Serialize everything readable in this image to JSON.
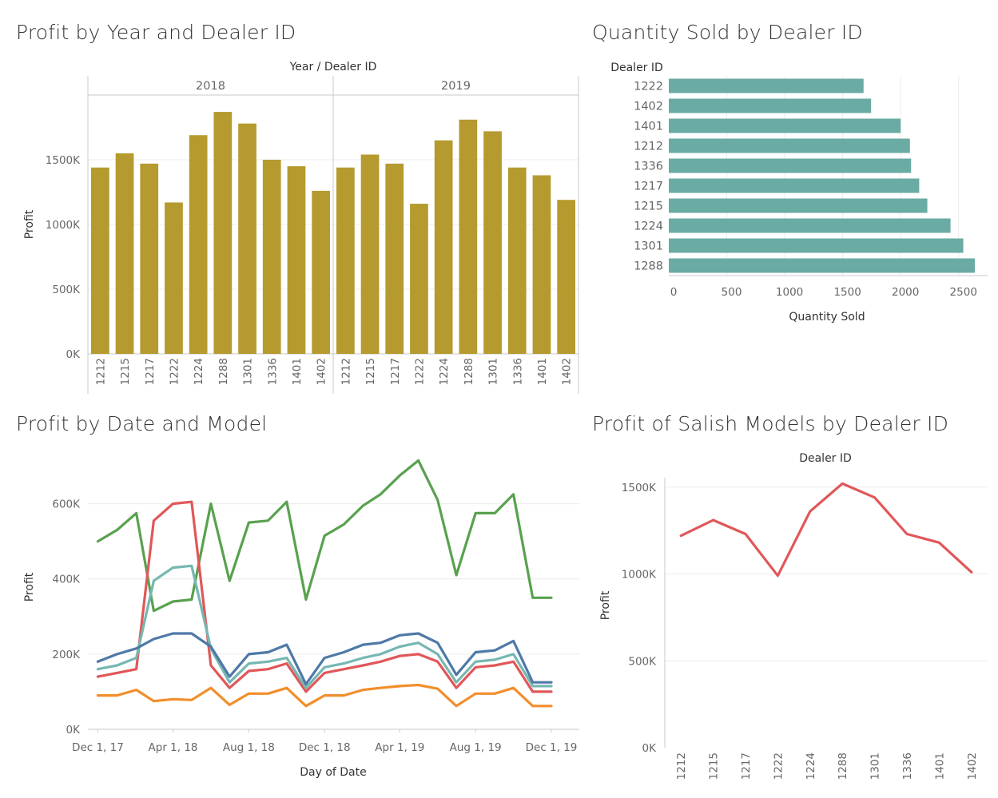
{
  "dashboard": {
    "titles": {
      "profit_year_dealer": "Profit by Year and Dealer ID",
      "quantity_by_dealer": "Quantity Sold by Dealer ID",
      "profit_date_model": "Profit by Date and Model",
      "salish_profit_dealer": "Profit of Salish Models by Dealer ID"
    }
  },
  "chart_data": [
    {
      "id": "profit_year_dealer",
      "type": "bar",
      "title": "Profit by Year and Dealer ID",
      "column_header": "Year / Dealer ID",
      "ylabel": "Profit",
      "ylim": [
        0,
        2000000
      ],
      "yticks": [
        0,
        500000,
        1000000,
        1500000
      ],
      "ytick_labels": [
        "0K",
        "500K",
        "1000K",
        "1500K"
      ],
      "color": "#b59a2f",
      "groups": [
        {
          "name": "2018",
          "categories": [
            "1212",
            "1215",
            "1217",
            "1222",
            "1224",
            "1288",
            "1301",
            "1336",
            "1401",
            "1402"
          ],
          "values": [
            1440000,
            1550000,
            1470000,
            1170000,
            1690000,
            1870000,
            1780000,
            1500000,
            1450000,
            1260000
          ]
        },
        {
          "name": "2019",
          "categories": [
            "1212",
            "1215",
            "1217",
            "1222",
            "1224",
            "1288",
            "1301",
            "1336",
            "1401",
            "1402"
          ],
          "values": [
            1440000,
            1540000,
            1470000,
            1160000,
            1650000,
            1810000,
            1720000,
            1440000,
            1380000,
            1190000
          ]
        }
      ]
    },
    {
      "id": "quantity_by_dealer",
      "type": "bar",
      "orientation": "horizontal",
      "title": "Quantity Sold by Dealer ID",
      "row_header": "Dealer ID",
      "xlabel": "Quantity Sold",
      "xlim": [
        0,
        2750
      ],
      "xticks": [
        0,
        500,
        1000,
        1500,
        2000,
        2500
      ],
      "color": "#6aaba3",
      "categories": [
        "1222",
        "1402",
        "1401",
        "1212",
        "1336",
        "1217",
        "1215",
        "1224",
        "1301",
        "1288"
      ],
      "values": [
        1680,
        1745,
        2000,
        2080,
        2090,
        2160,
        2230,
        2430,
        2540,
        2640
      ]
    },
    {
      "id": "profit_date_model",
      "type": "line",
      "title": "Profit by Date and Model",
      "xlabel": "Day of Date",
      "ylabel": "Profit",
      "ylim": [
        0,
        750000
      ],
      "yticks": [
        0,
        200000,
        400000,
        600000
      ],
      "ytick_labels": [
        "0K",
        "200K",
        "400K",
        "600K"
      ],
      "xlim": [
        "2017-11-15",
        "2020-01-15"
      ],
      "xticks": [
        "2017-12-01",
        "2018-04-01",
        "2018-08-01",
        "2018-12-01",
        "2019-04-01",
        "2019-08-01",
        "2019-12-01"
      ],
      "xtick_labels": [
        "Dec 1, 17",
        "Apr 1, 18",
        "Aug 1, 18",
        "Dec 1, 18",
        "Apr 1, 19",
        "Aug 1, 19",
        "Dec 1, 19"
      ],
      "x": [
        "2017-12-01",
        "2018-01-01",
        "2018-02-01",
        "2018-03-01",
        "2018-04-01",
        "2018-05-01",
        "2018-06-01",
        "2018-07-01",
        "2018-08-01",
        "2018-09-01",
        "2018-10-01",
        "2018-11-01",
        "2018-12-01",
        "2019-01-01",
        "2019-02-01",
        "2019-03-01",
        "2019-04-01",
        "2019-05-01",
        "2019-06-01",
        "2019-07-01",
        "2019-08-01",
        "2019-09-01",
        "2019-10-01",
        "2019-11-01",
        "2019-12-01"
      ],
      "series": [
        {
          "color": "#59a14f",
          "values": [
            500000,
            530000,
            575000,
            315000,
            340000,
            345000,
            600000,
            395000,
            550000,
            555000,
            605000,
            345000,
            515000,
            545000,
            595000,
            625000,
            675000,
            715000,
            610000,
            410000,
            575000,
            575000,
            625000,
            350000,
            350000
          ]
        },
        {
          "color": "#e15759",
          "values": [
            140000,
            150000,
            160000,
            555000,
            600000,
            605000,
            170000,
            110000,
            155000,
            160000,
            175000,
            100000,
            150000,
            160000,
            170000,
            180000,
            195000,
            200000,
            180000,
            110000,
            165000,
            170000,
            180000,
            100000,
            100000
          ]
        },
        {
          "color": "#76b7b2",
          "values": [
            160000,
            170000,
            190000,
            395000,
            430000,
            435000,
            215000,
            125000,
            175000,
            180000,
            190000,
            110000,
            165000,
            175000,
            190000,
            200000,
            220000,
            230000,
            200000,
            125000,
            180000,
            185000,
            200000,
            115000,
            115000
          ]
        },
        {
          "color": "#4e79a7",
          "values": [
            180000,
            200000,
            215000,
            240000,
            255000,
            255000,
            220000,
            140000,
            200000,
            205000,
            225000,
            120000,
            190000,
            205000,
            225000,
            230000,
            250000,
            255000,
            230000,
            145000,
            205000,
            210000,
            235000,
            125000,
            125000
          ]
        },
        {
          "color": "#f28e2b",
          "values": [
            90000,
            90000,
            105000,
            75000,
            80000,
            78000,
            110000,
            65000,
            95000,
            95000,
            110000,
            62000,
            90000,
            90000,
            105000,
            110000,
            115000,
            118000,
            108000,
            62000,
            95000,
            95000,
            110000,
            62000,
            62000
          ]
        }
      ]
    },
    {
      "id": "salish_profit_dealer",
      "type": "line",
      "title": "Profit of Salish Models by Dealer ID",
      "column_header": "Dealer ID",
      "ylabel": "Profit",
      "ylim": [
        0,
        1600000
      ],
      "yticks": [
        0,
        500000,
        1000000,
        1500000
      ],
      "ytick_labels": [
        "0K",
        "500K",
        "1000K",
        "1500K"
      ],
      "color": "#e15759",
      "categories": [
        "1212",
        "1215",
        "1217",
        "1222",
        "1224",
        "1288",
        "1301",
        "1336",
        "1401",
        "1402"
      ],
      "values": [
        1220000,
        1310000,
        1230000,
        990000,
        1360000,
        1520000,
        1440000,
        1230000,
        1180000,
        1010000
      ]
    }
  ]
}
